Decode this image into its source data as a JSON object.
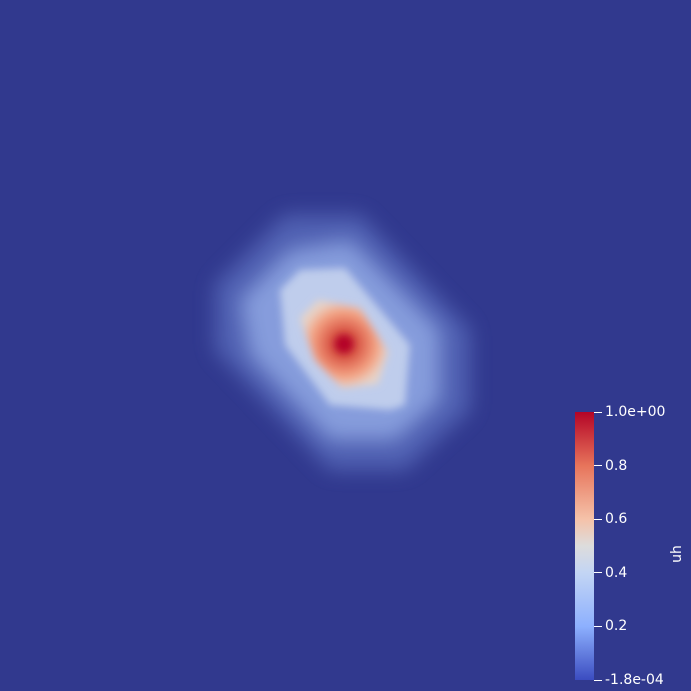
{
  "chart_data": {
    "type": "heatmap",
    "scalar_name": "uh",
    "range": [
      -0.00018,
      1.0
    ],
    "colormap": "coolwarm",
    "background": "#31398e",
    "colorbar": {
      "title": "uh",
      "ticks": [
        {
          "value": 1.0,
          "label": "1.0e+00"
        },
        {
          "value": 0.8,
          "label": "0.8"
        },
        {
          "value": 0.6,
          "label": "0.6"
        },
        {
          "value": 0.4,
          "label": "0.4"
        },
        {
          "value": 0.2,
          "label": "0.2"
        },
        {
          "value": -0.00018,
          "label": "-1.8e-04"
        }
      ],
      "placement": "bottom-right"
    },
    "grid": false,
    "peak_value": 1.0
  }
}
